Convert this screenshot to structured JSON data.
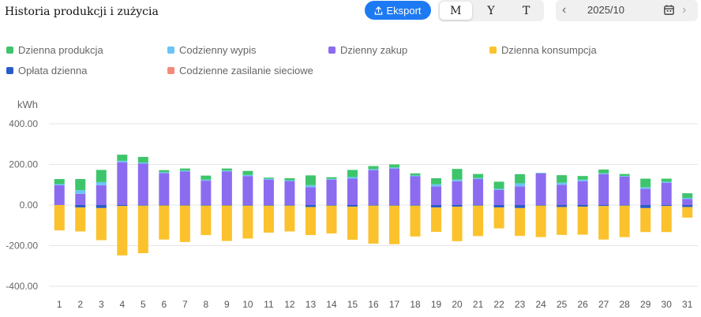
{
  "header": {
    "title": "Historia produkcji i zużycia",
    "export_label": "Eksport",
    "periods": [
      "M",
      "Y",
      "T"
    ],
    "active_period": "M",
    "date_value": "2025/10"
  },
  "chart_data": {
    "type": "bar",
    "stacked": true,
    "ylabel": "kWh",
    "ylim": [
      -400,
      400
    ],
    "yticks": [
      400,
      200,
      0,
      -200,
      -400
    ],
    "ytick_labels": [
      "400.00",
      "200.00",
      "0.00",
      "-200.00",
      "-400.00"
    ],
    "categories": [
      "1",
      "2",
      "3",
      "4",
      "5",
      "6",
      "7",
      "8",
      "9",
      "10",
      "11",
      "12",
      "13",
      "14",
      "15",
      "16",
      "17",
      "18",
      "19",
      "20",
      "21",
      "22",
      "23",
      "24",
      "25",
      "26",
      "27",
      "28",
      "29",
      "30",
      "31"
    ],
    "grid": true,
    "legend_position": "top",
    "series": [
      {
        "name": "Dzienny zakup",
        "color": "#8b6cf0",
        "stack": "positive",
        "values": [
          98,
          55,
          98,
          210,
          204,
          157,
          165,
          120,
          165,
          143,
          125,
          118,
          88,
          125,
          130,
          172,
          180,
          142,
          92,
          117,
          128,
          75,
          92,
          156,
          100,
          117,
          152,
          140,
          80,
          110,
          30
        ]
      },
      {
        "name": "Codzienny wypis",
        "color": "#6ac4f5",
        "stack": "positive",
        "values": [
          5,
          18,
          15,
          8,
          5,
          5,
          5,
          5,
          5,
          5,
          5,
          4,
          10,
          4,
          8,
          5,
          5,
          4,
          10,
          8,
          5,
          5,
          15,
          3,
          10,
          8,
          5,
          3,
          8,
          5,
          5
        ]
      },
      {
        "name": "Dzienna produkcja",
        "color": "#3ec56b",
        "stack": "positive",
        "values": [
          25,
          55,
          60,
          30,
          28,
          10,
          10,
          20,
          10,
          20,
          5,
          10,
          48,
          8,
          35,
          15,
          15,
          10,
          30,
          53,
          20,
          35,
          45,
          0,
          37,
          18,
          18,
          10,
          42,
          15,
          23
        ]
      },
      {
        "name": "Opłata dzienna",
        "color": "#2a5cc9",
        "stack": "negative",
        "values": [
          0,
          -12,
          -15,
          -5,
          -3,
          -2,
          -2,
          -3,
          -2,
          -3,
          -3,
          -3,
          -10,
          -3,
          -8,
          -3,
          -3,
          -3,
          -12,
          -8,
          -3,
          -12,
          -15,
          -3,
          -10,
          -8,
          -5,
          -3,
          -15,
          -5,
          -10
        ]
      },
      {
        "name": "Codzienne zasilanie sieciowe",
        "color": "#f58a7a",
        "stack": "negative",
        "values": [
          0,
          0,
          0,
          0,
          0,
          0,
          0,
          0,
          0,
          0,
          0,
          0,
          0,
          0,
          0,
          0,
          0,
          0,
          0,
          0,
          0,
          0,
          0,
          0,
          0,
          0,
          0,
          0,
          0,
          0,
          0
        ]
      },
      {
        "name": "Dzienna konsumpcja",
        "color": "#fbc22d",
        "stack": "negative",
        "values": [
          -125,
          -118,
          -158,
          -243,
          -234,
          -168,
          -180,
          -145,
          -175,
          -162,
          -133,
          -127,
          -138,
          -137,
          -163,
          -187,
          -190,
          -152,
          -120,
          -170,
          -150,
          -103,
          -137,
          -155,
          -137,
          -138,
          -165,
          -155,
          -118,
          -128,
          -52
        ]
      }
    ]
  },
  "legend": [
    {
      "name": "Dzienna produkcja",
      "color": "#3ec56b"
    },
    {
      "name": "Codzienny wypis",
      "color": "#6ac4f5"
    },
    {
      "name": "Dzienny zakup",
      "color": "#8b6cf0"
    },
    {
      "name": "Dzienna konsumpcja",
      "color": "#fbc22d"
    },
    {
      "name": "Opłata dzienna",
      "color": "#2a5cc9"
    },
    {
      "name": "Codzienne zasilanie sieciowe",
      "color": "#f58a7a"
    }
  ]
}
